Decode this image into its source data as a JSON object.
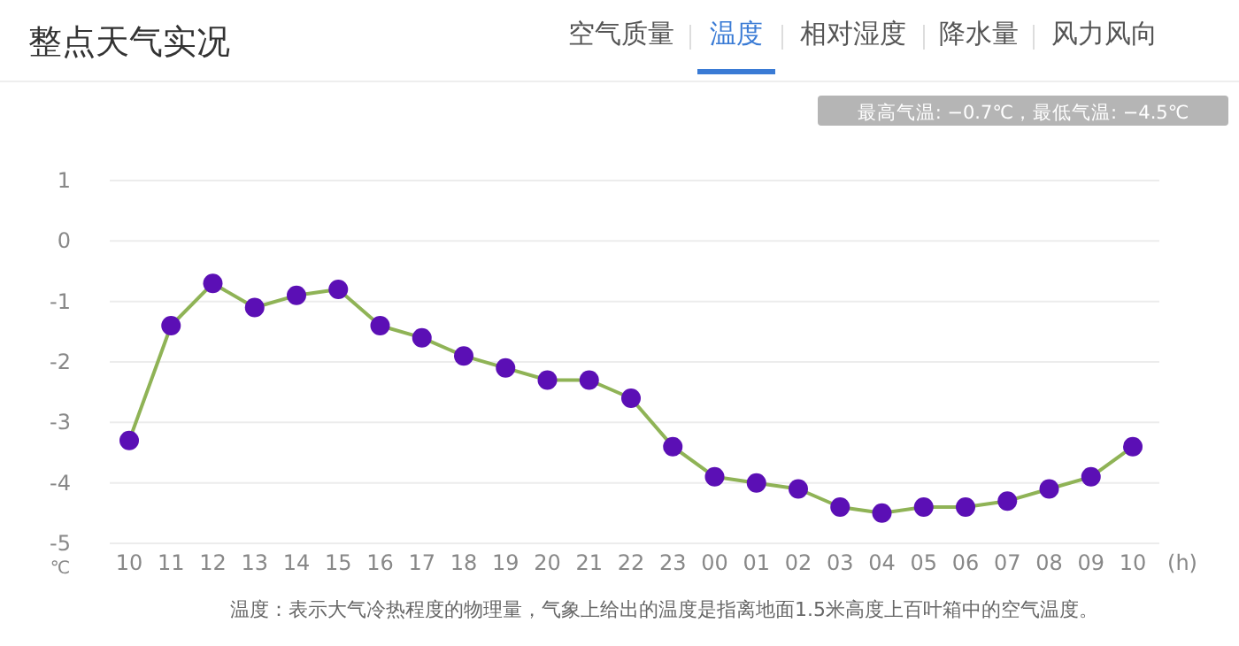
{
  "chart_data": {
    "type": "line",
    "title": "整点天气实况",
    "ylabel": "℃",
    "xlabel": "(h)",
    "categories": [
      "10",
      "11",
      "12",
      "13",
      "14",
      "15",
      "16",
      "17",
      "18",
      "19",
      "20",
      "21",
      "22",
      "23",
      "00",
      "01",
      "02",
      "03",
      "04",
      "05",
      "06",
      "07",
      "08",
      "09",
      "10"
    ],
    "series": [
      {
        "color": "#8fb356",
        "colors": [
          "#5b0fb5",
          "#5b0fb5",
          "#5b0fb5",
          "#5b0fb5",
          "#5b0fb5",
          "#5b0fb5",
          "#5b0fb5",
          "#5b0fb5",
          "#5b0fb5",
          "#5b0fb5",
          "#5b0fb5",
          "#5b0fb5",
          "#5b0fb5",
          "#5b0fb5",
          "#5b0fb5",
          "#5b0fb5",
          "#5b0fb5",
          "#5b0fb5",
          "#5b0fb5",
          "#5b0fb5",
          "#5b0fb5",
          "#5b0fb5",
          "#5b0fb5",
          "#5b0fb5",
          "#5b0fb5"
        ],
        "values": [
          -3.3,
          -1.4,
          -0.7,
          -1.1,
          -0.9,
          -0.8,
          -1.4,
          -1.6,
          -1.9,
          -2.1,
          -2.3,
          -2.3,
          -2.6,
          -3.4,
          -3.9,
          -4.0,
          -4.1,
          -4.4,
          -4.5,
          -4.4,
          -4.4,
          -4.3,
          -4.1,
          -3.9,
          -3.4
        ]
      }
    ],
    "ylim": [
      -5,
      1
    ],
    "yticks": [
      -5,
      -4,
      -3,
      -2,
      -1,
      0,
      1
    ],
    "grid": "y",
    "marker": "circle",
    "annotations": [
      "空气质量",
      "温度",
      "相对湿度",
      "降水量",
      "风力风向",
      "最高气温: −0.7℃，最低气温: −4.5℃",
      "温度：表示大气冷热程度的物理量，气象上给出的温度是指离地面1.5米高度上百叶箱中的空气温度。"
    ]
  }
}
